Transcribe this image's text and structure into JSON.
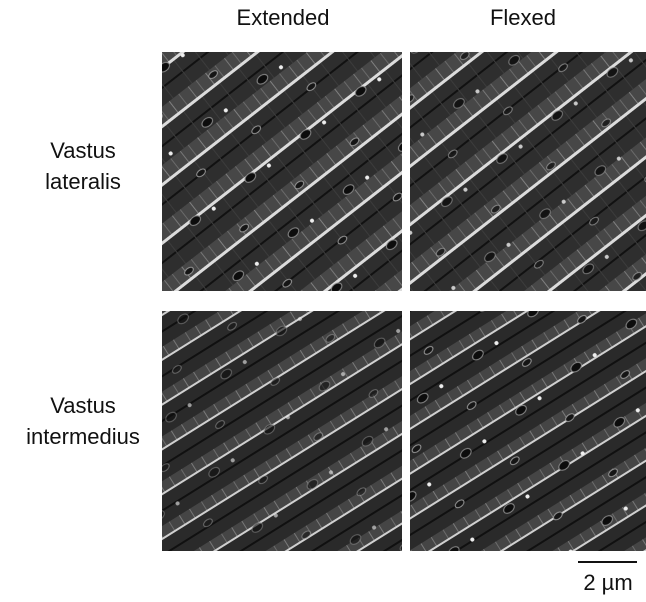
{
  "columns": [
    "Extended",
    "Flexed"
  ],
  "rows": [
    [
      "Vastus",
      "lateralis"
    ],
    [
      "Vastus",
      "intermedius"
    ]
  ],
  "scale_bar": "2 µm"
}
